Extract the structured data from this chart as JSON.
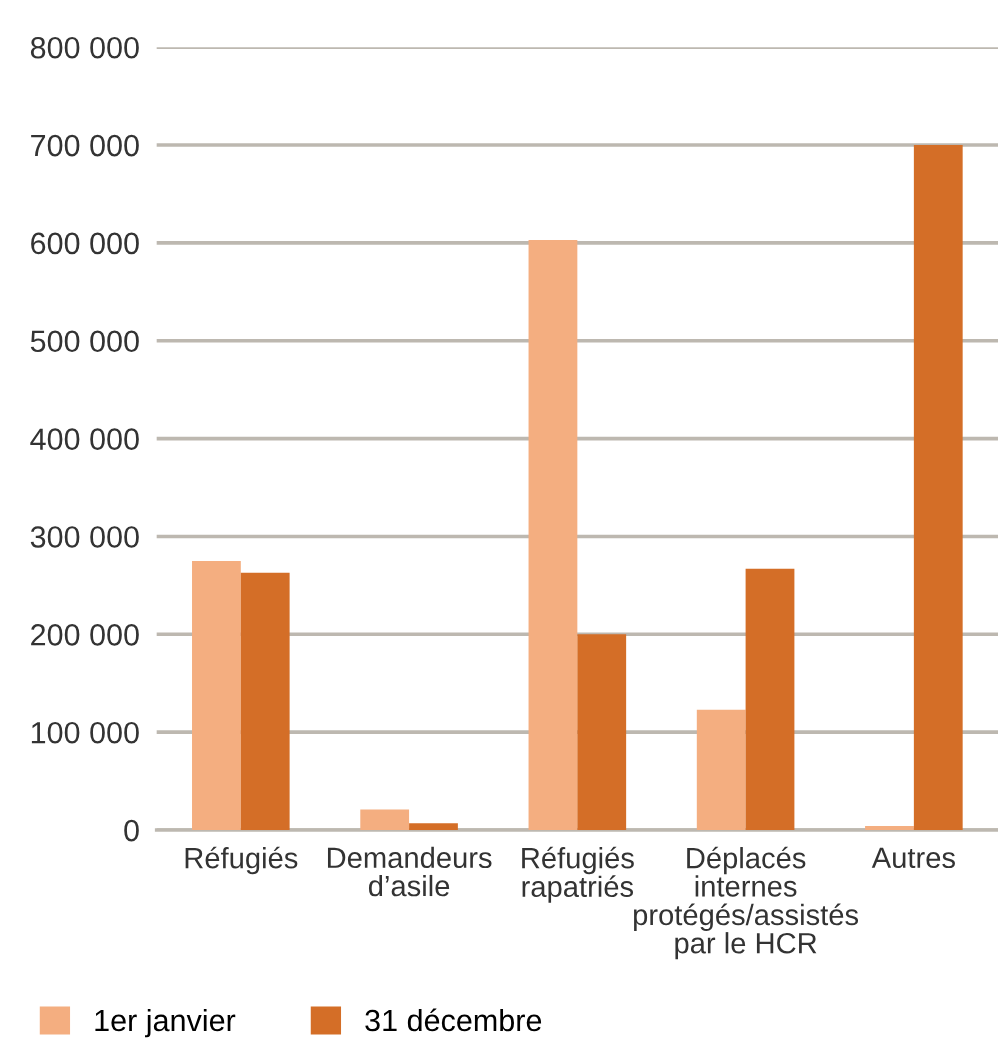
{
  "chart_data": {
    "type": "bar",
    "categories": [
      "Réfugiés",
      "Demandeurs\nd’asile",
      "Réfugiés\nrapatriés",
      "Déplacés\ninternes\nprotégés/assistés\npar le HCR",
      "Autres"
    ],
    "series": [
      {
        "name": "1er janvier",
        "color": "#f4ae80",
        "values": [
          275000,
          21000,
          603000,
          123000,
          4000
        ]
      },
      {
        "name": "31 décembre",
        "color": "#d46e27",
        "values": [
          263000,
          7000,
          200000,
          267000,
          700000
        ]
      }
    ],
    "ylim": [
      0,
      800000
    ],
    "yticks": [
      {
        "value": 0,
        "label": "0"
      },
      {
        "value": 100000,
        "label": "100 000"
      },
      {
        "value": 200000,
        "label": "200 000"
      },
      {
        "value": 300000,
        "label": "300 000"
      },
      {
        "value": 400000,
        "label": "400 000"
      },
      {
        "value": 500000,
        "label": "500 000"
      },
      {
        "value": 600000,
        "label": "600 000"
      },
      {
        "value": 700000,
        "label": "700 000"
      },
      {
        "value": 800000,
        "label": "800 000"
      }
    ],
    "grid": "y",
    "legend": "bottom left"
  }
}
